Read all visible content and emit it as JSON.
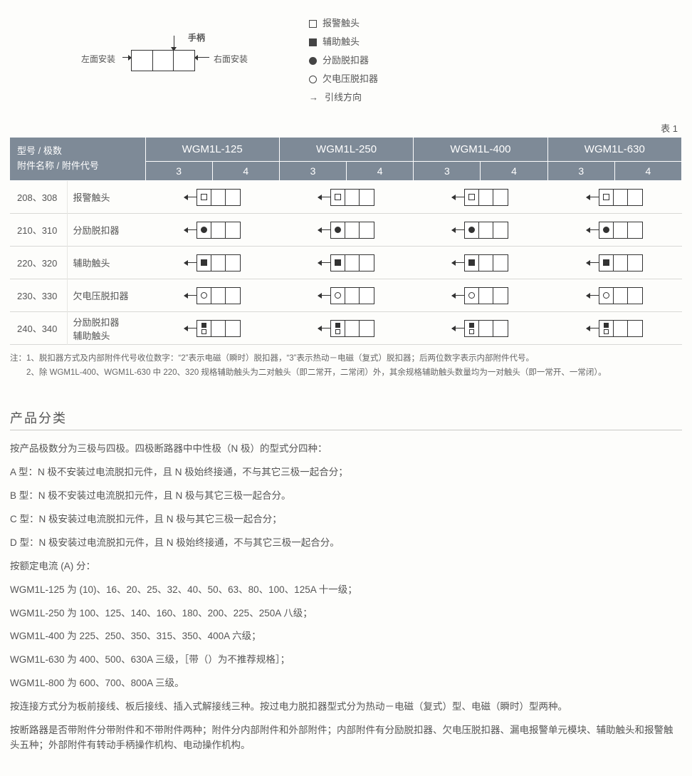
{
  "diagram": {
    "handle_label": "手柄",
    "left_label": "左面安装",
    "right_label": "右面安装"
  },
  "legend": {
    "items": [
      {
        "icon": "empty-square",
        "label": "报警触头"
      },
      {
        "icon": "filled-square",
        "label": "辅助触头"
      },
      {
        "icon": "filled-circle",
        "label": "分励脱扣器"
      },
      {
        "icon": "empty-circle",
        "label": "欠电压脱扣器"
      },
      {
        "icon": "arrow",
        "label": "引线方向"
      }
    ]
  },
  "table_label": "表 1",
  "table": {
    "corner_line1": "型号 / 极数",
    "corner_line2": "附件名称 / 附件代号",
    "models": [
      "WGM1L-125",
      "WGM1L-250",
      "WGM1L-400",
      "WGM1L-630"
    ],
    "poles": [
      "3",
      "4"
    ],
    "rows": [
      {
        "code": "208、308",
        "name": "报警触头",
        "symbol": "empty-square"
      },
      {
        "code": "210、310",
        "name": "分励脱扣器",
        "symbol": "filled-circle"
      },
      {
        "code": "220、320",
        "name": "辅助触头",
        "symbol": "filled-square"
      },
      {
        "code": "230、330",
        "name": "欠电压脱扣器",
        "symbol": "empty-circle"
      },
      {
        "code": "240、340",
        "name": "分励脱扣器\n辅助触头",
        "symbol": "stack"
      }
    ]
  },
  "notes": {
    "line1": "注：1、脱扣器方式及内部附件代号收位数字：“2”表示电磁（瞬时）脱扣器，“3”表示热动－电磁（复式）脱扣器；后两位数字表示内部附件代号。",
    "line2": "　　2、除 WGM1L-400、WGM1L-630 中 220、320 规格辅助触头为二对触头（即二常开，二常闭）外，其余规格辅助触头数量均为一对触头（即一常开、一常闭）。"
  },
  "section_title": "产品分类",
  "paragraphs": [
    "按产品极数分为三极与四极。四极断路器中中性极（N 极）的型式分四种：",
    "A 型：N 极不安装过电流脱扣元件，且 N 极始终接通，不与其它三极一起合分；",
    "B 型：N 极不安装过电流脱扣元件，且 N 极与其它三极一起合分。",
    "C 型：N 极安装过电流脱扣元件，且 N 极与其它三极一起合分；",
    "D 型：N 极安装过电流脱扣元件，且 N 极始终接通，不与其它三极一起合分。",
    "按额定电流 (A) 分：",
    "WGM1L-125 为 (10)、16、20、25、32、40、50、63、80、100、125A 十一级；",
    "WGM1L-250 为 100、125、140、160、180、200、225、250A 八级；",
    "WGM1L-400 为 225、250、350、315、350、400A 六级；",
    "WGM1L-630 为 400、500、630A 三级，［带（）为不推荐规格］；",
    "WGM1L-800 为 600、700、800A 三级。",
    "按连接方式分为板前接线、板后接线、插入式解接线三种。按过电力脱扣器型式分为热动－电磁（复式）型、电磁（瞬时）型两种。",
    "按断路器是否带附件分带附件和不带附件两种；附件分内部附件和外部附件；内部附件有分励脱扣器、欠电压脱扣器、漏电报警单元模块、辅助触头和报警触头五种；外部附件有转动手柄操作机构、电动操作机构。"
  ],
  "colors": {
    "header_bg": "#7e8a97",
    "header_fg": "#ffffff",
    "body_bg": "#fdfdfb",
    "text": "#555555",
    "border": "#d9d9d6"
  }
}
